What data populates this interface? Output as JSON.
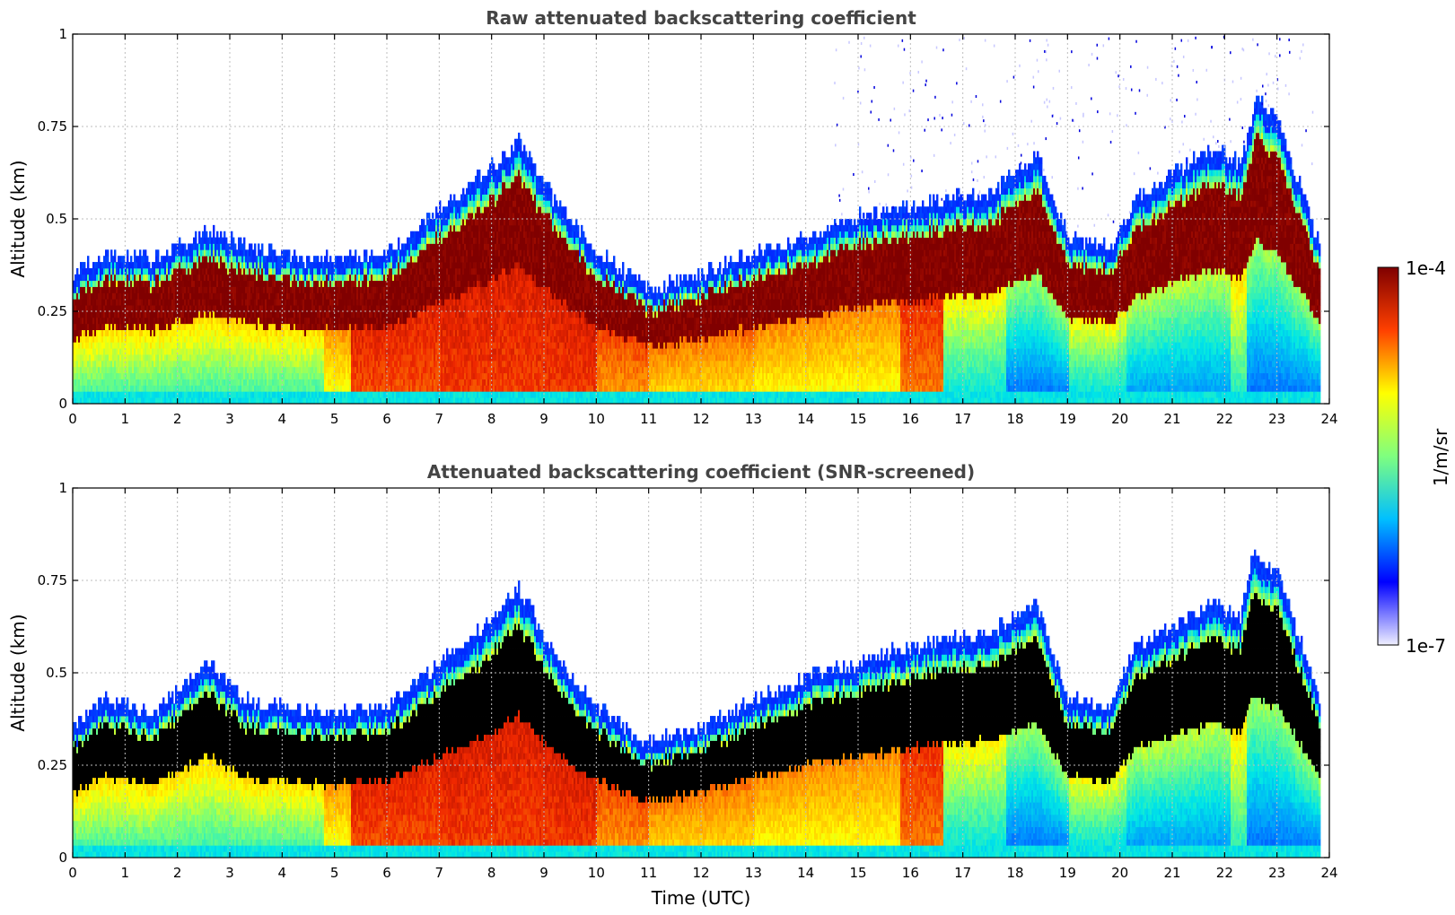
{
  "chart_data": [
    {
      "type": "heatmap",
      "title": "Raw attenuated backscattering coefficient",
      "xlabel": "",
      "ylabel": "Altitude (km)",
      "xlim": [
        0,
        24
      ],
      "ylim": [
        0,
        1
      ],
      "x_ticks": [
        "0",
        "1",
        "2",
        "3",
        "4",
        "5",
        "6",
        "7",
        "8",
        "9",
        "10",
        "11",
        "12",
        "13",
        "14",
        "15",
        "16",
        "17",
        "18",
        "19",
        "20",
        "21",
        "22",
        "23",
        "24"
      ],
      "y_ticks": [
        "0",
        "0.25",
        "0.5",
        "0.75",
        "1"
      ],
      "grid": true,
      "data_end_hour": 23.8,
      "layer_top_km": [
        {
          "t": 0,
          "v": 0.32
        },
        {
          "t": 0.6,
          "v": 0.38
        },
        {
          "t": 1.5,
          "v": 0.36
        },
        {
          "t": 2.6,
          "v": 0.44
        },
        {
          "t": 3.2,
          "v": 0.4
        },
        {
          "t": 4.5,
          "v": 0.36
        },
        {
          "t": 6.0,
          "v": 0.38
        },
        {
          "t": 7.0,
          "v": 0.5
        },
        {
          "t": 7.9,
          "v": 0.6
        },
        {
          "t": 8.5,
          "v": 0.68
        },
        {
          "t": 9.2,
          "v": 0.52
        },
        {
          "t": 10.0,
          "v": 0.38
        },
        {
          "t": 11.0,
          "v": 0.28
        },
        {
          "t": 12.0,
          "v": 0.32
        },
        {
          "t": 13.0,
          "v": 0.38
        },
        {
          "t": 14.0,
          "v": 0.42
        },
        {
          "t": 15.0,
          "v": 0.48
        },
        {
          "t": 16.5,
          "v": 0.52
        },
        {
          "t": 17.5,
          "v": 0.54
        },
        {
          "t": 18.4,
          "v": 0.65
        },
        {
          "t": 19.0,
          "v": 0.42
        },
        {
          "t": 19.8,
          "v": 0.4
        },
        {
          "t": 20.3,
          "v": 0.52
        },
        {
          "t": 21.0,
          "v": 0.6
        },
        {
          "t": 21.8,
          "v": 0.66
        },
        {
          "t": 22.3,
          "v": 0.62
        },
        {
          "t": 22.6,
          "v": 0.8
        },
        {
          "t": 23.0,
          "v": 0.74
        },
        {
          "t": 23.8,
          "v": 0.4
        }
      ]
    },
    {
      "type": "heatmap",
      "title": "Attenuated backscattering coefficient (SNR-screened)",
      "xlabel": "Time (UTC)",
      "ylabel": "Altitude (km)",
      "xlim": [
        0,
        24
      ],
      "ylim": [
        0,
        1
      ],
      "x_ticks": [
        "0",
        "1",
        "2",
        "3",
        "4",
        "5",
        "6",
        "7",
        "8",
        "9",
        "10",
        "11",
        "12",
        "13",
        "14",
        "15",
        "16",
        "17",
        "18",
        "19",
        "20",
        "21",
        "22",
        "23",
        "24"
      ],
      "y_ticks": [
        "0",
        "0.25",
        "0.5",
        "0.75",
        "1"
      ],
      "grid": true,
      "data_end_hour": 23.8,
      "layer_top_km": [
        {
          "t": 0,
          "v": 0.32
        },
        {
          "t": 0.6,
          "v": 0.4
        },
        {
          "t": 1.5,
          "v": 0.36
        },
        {
          "t": 2.6,
          "v": 0.5
        },
        {
          "t": 3.2,
          "v": 0.4
        },
        {
          "t": 4.5,
          "v": 0.36
        },
        {
          "t": 6.0,
          "v": 0.38
        },
        {
          "t": 7.0,
          "v": 0.5
        },
        {
          "t": 7.9,
          "v": 0.6
        },
        {
          "t": 8.5,
          "v": 0.7
        },
        {
          "t": 9.2,
          "v": 0.52
        },
        {
          "t": 10.0,
          "v": 0.38
        },
        {
          "t": 11.0,
          "v": 0.28
        },
        {
          "t": 12.0,
          "v": 0.32
        },
        {
          "t": 13.0,
          "v": 0.4
        },
        {
          "t": 14.0,
          "v": 0.46
        },
        {
          "t": 15.0,
          "v": 0.5
        },
        {
          "t": 16.5,
          "v": 0.56
        },
        {
          "t": 17.5,
          "v": 0.58
        },
        {
          "t": 18.4,
          "v": 0.66
        },
        {
          "t": 19.0,
          "v": 0.4
        },
        {
          "t": 19.8,
          "v": 0.38
        },
        {
          "t": 20.3,
          "v": 0.55
        },
        {
          "t": 21.0,
          "v": 0.6
        },
        {
          "t": 21.8,
          "v": 0.66
        },
        {
          "t": 22.3,
          "v": 0.62
        },
        {
          "t": 22.5,
          "v": 0.8
        },
        {
          "t": 23.0,
          "v": 0.74
        },
        {
          "t": 23.8,
          "v": 0.4
        }
      ]
    }
  ],
  "colorbar": {
    "label": "1/m/sr",
    "max_label": "1e-4",
    "min_label": "1e-7",
    "scale": "log",
    "colormap": "jet",
    "colors": [
      "#f0f0ff",
      "#0000ff",
      "#00bfff",
      "#7fff7f",
      "#ffff00",
      "#ff4000",
      "#7f0000"
    ]
  },
  "colors": {
    "title": "#444444",
    "grid": "#bdbdbd",
    "saturated_screened": "#000000"
  }
}
